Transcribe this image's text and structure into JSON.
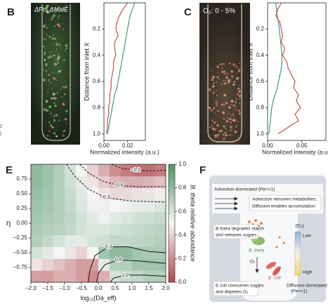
{
  "chart_data": [
    {
      "type": "line",
      "ylabel": "Distance from inlet X",
      "xlabel": "Normalized intensity (a.u.)",
      "xlim": [
        0,
        0.035
      ],
      "xticks": [
        {
          "value": 0,
          "label": "0.00"
        },
        {
          "value": 0.02,
          "label": "0.02"
        }
      ],
      "ylim": [
        0,
        1.05
      ],
      "yinvert": true,
      "yticks": [
        0.2,
        0.4,
        0.6,
        0.8,
        {
          "value": 1,
          "label": "1.0"
        }
      ],
      "y": [
        0,
        0.05,
        0.1,
        0.15,
        0.2,
        0.25,
        0.3,
        0.35,
        0.4,
        0.45,
        0.5,
        0.55,
        0.6,
        0.65,
        0.7,
        0.75,
        0.8,
        0.85,
        0.9,
        0.95,
        1.0
      ],
      "series": [
        {
          "color": "#3f9a7a",
          "values": [
            0.026,
            0.024,
            0.022,
            0.021,
            0.02,
            0.019,
            0.018,
            0.017,
            0.016,
            0.015,
            0.014,
            0.013,
            0.012,
            0.011,
            0.009,
            0.008,
            0.007,
            0.006,
            0.005,
            0.004,
            0.003
          ]
        },
        {
          "color": "#c8504a",
          "values": [
            0.02,
            0.016,
            0.013,
            0.011,
            0.01,
            0.012,
            0.009,
            0.009,
            0.01,
            0.008,
            0.008,
            0.007,
            0.006,
            0.006,
            0.005,
            0.005,
            0.004,
            0.004,
            0.003,
            0.003,
            0.002
          ]
        }
      ]
    },
    {
      "type": "line",
      "ylabel": "Distance from inlet X",
      "xlabel": "Normalized intensity (a.u.)",
      "xlim": [
        0,
        0.085
      ],
      "xticks": [
        {
          "value": 0,
          "label": "0.00"
        },
        0.05
      ],
      "ylim": [
        0,
        1.05
      ],
      "yinvert": true,
      "yticks": [
        0.2,
        0.4,
        0.6,
        0.8,
        {
          "value": 1,
          "label": "1.0"
        }
      ],
      "y": [
        0,
        0.05,
        0.1,
        0.15,
        0.2,
        0.25,
        0.3,
        0.35,
        0.4,
        0.45,
        0.5,
        0.55,
        0.6,
        0.65,
        0.7,
        0.75,
        0.8,
        0.85,
        0.9,
        0.95,
        1.0
      ],
      "series": [
        {
          "color": "#3f9a7a",
          "values": [
            0.012,
            0.013,
            0.014,
            0.016,
            0.017,
            0.018,
            0.019,
            0.02,
            0.021,
            0.021,
            0.02,
            0.018,
            0.016,
            0.014,
            0.011,
            0.008,
            0.006,
            0.005,
            0.004,
            0.003,
            0.002
          ]
        },
        {
          "color": "#c8504a",
          "values": [
            0.02,
            0.015,
            0.012,
            0.018,
            0.02,
            0.022,
            0.02,
            0.025,
            0.022,
            0.028,
            0.03,
            0.035,
            0.04,
            0.038,
            0.045,
            0.042,
            0.048,
            0.04,
            0.045,
            0.03,
            0.015
          ]
        }
      ]
    },
    {
      "type": "heatmap",
      "xlabel": "log₁₀(Da_eff)",
      "ylabel": "η",
      "colorbar_label": "B. theta relative abundance",
      "xlim": [
        -2,
        2
      ],
      "ylim": [
        -1,
        1
      ],
      "xticks": [
        {
          "value": -2,
          "label": "−2.0"
        },
        {
          "value": -1.5,
          "label": "−1.5"
        },
        {
          "value": -1,
          "label": "−1.0"
        },
        {
          "value": -0.5,
          "label": "−0.5"
        },
        {
          "value": 0,
          "label": "0.0"
        },
        0.5,
        {
          "value": 1,
          "label": "1.0"
        },
        1.5,
        {
          "value": 2,
          "label": "2.0"
        }
      ],
      "yticks": [
        {
          "value": -0.75,
          "label": "−0.75"
        },
        {
          "value": -0.5,
          "label": "−0.50"
        },
        {
          "value": -0.25,
          "label": "−0.25"
        },
        {
          "value": 0,
          "label": "0.00"
        },
        0.25,
        {
          "value": 0.5,
          "label": "0.50"
        },
        0.75
      ],
      "colormap": [
        "#b2474a",
        "#f5f5f5",
        "#4d9566"
      ],
      "clim": [
        0,
        1
      ],
      "cticks": [
        {
          "value": 0,
          "label": "0.0"
        },
        0.2,
        0.4,
        0.6,
        0.8,
        {
          "value": 1,
          "label": "1.0"
        }
      ],
      "z": [
        [
          0.25,
          0.25,
          0.3,
          0.3,
          0.25,
          0.2,
          0.3,
          0.6,
          0.65,
          0.65,
          0.7,
          0.7
        ],
        [
          0.45,
          0.4,
          0.35,
          0.3,
          0.25,
          0.25,
          0.55,
          0.7,
          0.7,
          0.75,
          0.75,
          0.75
        ],
        [
          0.6,
          0.55,
          0.5,
          0.45,
          0.4,
          0.5,
          0.75,
          0.8,
          0.8,
          0.75,
          0.72,
          0.72
        ],
        [
          0.7,
          0.65,
          0.6,
          0.55,
          0.55,
          0.6,
          0.62,
          0.65,
          0.65,
          0.66,
          0.68,
          0.7
        ],
        [
          0.72,
          0.7,
          0.68,
          0.65,
          0.6,
          0.58,
          0.58,
          0.6,
          0.62,
          0.64,
          0.66,
          0.68
        ],
        [
          0.74,
          0.72,
          0.7,
          0.66,
          0.6,
          0.55,
          0.52,
          0.55,
          0.58,
          0.6,
          0.62,
          0.64
        ],
        [
          0.76,
          0.74,
          0.7,
          0.65,
          0.58,
          0.52,
          0.48,
          0.5,
          0.52,
          0.54,
          0.55,
          0.58
        ],
        [
          0.78,
          0.75,
          0.7,
          0.64,
          0.56,
          0.5,
          0.45,
          0.42,
          0.42,
          0.44,
          0.45,
          0.48
        ],
        [
          0.8,
          0.76,
          0.7,
          0.62,
          0.55,
          0.45,
          0.38,
          0.32,
          0.3,
          0.3,
          0.32,
          0.35
        ],
        [
          0.8,
          0.76,
          0.7,
          0.6,
          0.5,
          0.4,
          0.3,
          0.2,
          0.15,
          0.12,
          0.12,
          0.15
        ]
      ],
      "contours": [
        {
          "level": -1.2,
          "label": "−1.2",
          "dashed": true,
          "x": [
            0.4,
            0.7,
            1.1,
            1.6,
            2.0
          ],
          "y": [
            1.0,
            0.93,
            0.9,
            0.89,
            0.9
          ]
        },
        {
          "level": -0.6,
          "label": "−0.6",
          "dashed": true,
          "x": [
            -0.55,
            -0.3,
            0.1,
            0.6,
            1.2,
            2.0
          ],
          "y": [
            1.0,
            0.86,
            0.72,
            0.64,
            0.62,
            0.62
          ]
        },
        {
          "level": -0.3,
          "label": "−0.3",
          "dashed": true,
          "x": [
            -0.95,
            -0.7,
            -0.3,
            0.2,
            0.9,
            2.0
          ],
          "y": [
            1.0,
            0.8,
            0.58,
            0.44,
            0.38,
            0.36
          ]
        },
        {
          "level": 0.3,
          "dashed": false,
          "x": [
            -0.3,
            -0.25,
            -0.1,
            0.3,
            0.9,
            1.5,
            2.0
          ],
          "y": [
            -1.0,
            -0.8,
            -0.55,
            -0.4,
            -0.4,
            -0.48,
            -0.5
          ]
        },
        {
          "level": 0.6,
          "dashed": false,
          "x": [
            -0.05,
            0.0,
            0.2,
            0.6,
            1.2,
            2.0
          ],
          "y": [
            -1.0,
            -0.85,
            -0.7,
            -0.62,
            -0.64,
            -0.68
          ]
        },
        {
          "level": 1.2,
          "dashed": false,
          "x": [
            0.35,
            0.45,
            0.8,
            1.4,
            2.0
          ],
          "y": [
            -1.0,
            -0.93,
            -0.88,
            -0.88,
            -0.9
          ]
        }
      ]
    }
  ],
  "figure": {
    "panel_labels": [
      "B",
      "C",
      "E",
      "F"
    ],
    "image_labels": [
      "ΔPts ΔMalE",
      "O₂: 0 - 5%"
    ],
    "fragments": [
      "1",
      ")"
    ]
  },
  "diagram": {
    "advection": "Advection-dominated (Pe>>1)",
    "advection_note": [
      "Advection removes metabolites;",
      "Diffusion enables accumulation"
    ],
    "btheta_note": [
      "B theta degrades starch",
      "and releases sugars"
    ],
    "o2_scale": {
      "title": "[O₂]",
      "low": "Low",
      "high": "High"
    },
    "btheta": "B. theta",
    "o2": "O₂",
    "ecoli": "E. coli",
    "ecoli_note": [
      "E coli consumes sugars",
      "and depletes O₂"
    ],
    "diffusion": [
      "Diffusion-dominated",
      "(Pe<<1)"
    ]
  }
}
